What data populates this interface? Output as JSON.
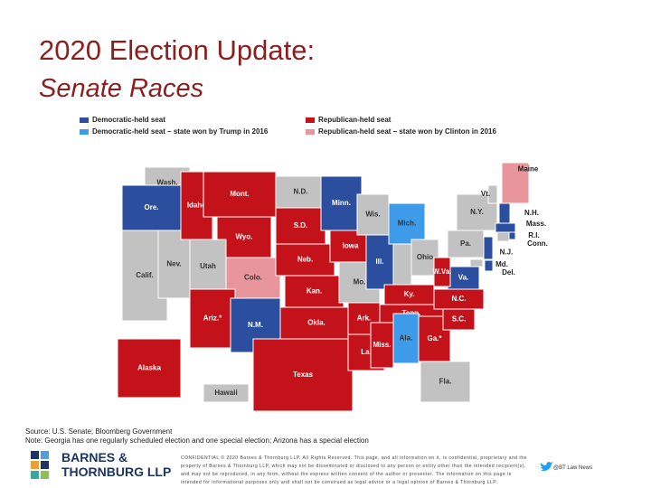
{
  "header": {
    "title": "2020 Election Update:",
    "subtitle": "Senate Races"
  },
  "legend": [
    {
      "label": "Democratic-held seat",
      "status": "d",
      "color": "#2b4f9e"
    },
    {
      "label": "Democratic-held seat – state won by Trump in 2016",
      "status": "dt",
      "color": "#3d9be9"
    },
    {
      "label": "Republican-held seat",
      "status": "r",
      "color": "#c4121a"
    },
    {
      "label": "Republican-held seat – state won by Clinton in 2016",
      "status": "rc",
      "color": "#e8959b"
    }
  ],
  "states": [
    {
      "label": "Wash.",
      "status": "none"
    },
    {
      "label": "Ore.",
      "status": "d"
    },
    {
      "label": "Calif.",
      "status": "none"
    },
    {
      "label": "Nev.",
      "status": "none"
    },
    {
      "label": "Idaho",
      "status": "r"
    },
    {
      "label": "Mont.",
      "status": "r"
    },
    {
      "label": "Wyo.",
      "status": "r"
    },
    {
      "label": "Utah",
      "status": "none"
    },
    {
      "label": "Colo.",
      "status": "rc"
    },
    {
      "label": "Ariz.*",
      "status": "r"
    },
    {
      "label": "N.M.",
      "status": "d"
    },
    {
      "label": "N.D.",
      "status": "none"
    },
    {
      "label": "S.D.",
      "status": "r"
    },
    {
      "label": "Neb.",
      "status": "r"
    },
    {
      "label": "Kan.",
      "status": "r"
    },
    {
      "label": "Okla.",
      "status": "r"
    },
    {
      "label": "Texas",
      "status": "r"
    },
    {
      "label": "Minn.",
      "status": "d"
    },
    {
      "label": "Iowa",
      "status": "r"
    },
    {
      "label": "Mo.",
      "status": "none"
    },
    {
      "label": "Ark.",
      "status": "r"
    },
    {
      "label": "La.",
      "status": "r"
    },
    {
      "label": "Wis.",
      "status": "none"
    },
    {
      "label": "Ill.",
      "status": "d"
    },
    {
      "label": "Mich.",
      "status": "dt"
    },
    {
      "label": "Ohio",
      "status": "none"
    },
    {
      "label": "Ky.",
      "status": "r"
    },
    {
      "label": "Tenn.",
      "status": "r"
    },
    {
      "label": "Miss.",
      "status": "r"
    },
    {
      "label": "Ala.",
      "status": "dt"
    },
    {
      "label": "Ga.*",
      "status": "r"
    },
    {
      "label": "Fla.",
      "status": "none"
    },
    {
      "label": "S.C.",
      "status": "r"
    },
    {
      "label": "N.C.",
      "status": "r"
    },
    {
      "label": "Va.",
      "status": "d"
    },
    {
      "label": "W.Va.",
      "status": "r"
    },
    {
      "label": "Pa.",
      "status": "none"
    },
    {
      "label": "N.Y.",
      "status": "none"
    },
    {
      "label": "Vt.",
      "status": "none"
    },
    {
      "label": "Maine",
      "status": "rc"
    },
    {
      "label": "N.H.",
      "status": "d"
    },
    {
      "label": "Mass.",
      "status": "d"
    },
    {
      "label": "R.I.",
      "status": "d"
    },
    {
      "label": "Conn.",
      "status": "none"
    },
    {
      "label": "N.J.",
      "status": "d"
    },
    {
      "label": "Md.",
      "status": "none"
    },
    {
      "label": "Del.",
      "status": "d"
    },
    {
      "label": "Alaska",
      "status": "r"
    },
    {
      "label": "Hawaii",
      "status": "none"
    }
  ],
  "footer": {
    "source": "Source: U.S. Senate; Bloomberg Government",
    "note": "Note: Georgia has one regularly scheduled election and one special election; Arizona has a special election",
    "logo": "BARNES & THORNBURG LLP",
    "confidential": "CONFIDENTIAL © 2020 Barnes & Thornburg LLP. All Rights Reserved. This page, and all information on it, is confidential, proprietary and the property of Barnes & Thornburg LLP, which may not be disseminated or disclosed to any person or entity other than the intended recipient(s), and may not be reproduced, in any form, without the express written consent of the author or presenter. The information on this page is intended for informational purposes only and shall not be construed as legal advice or a legal opinion of Barnes & Thornburg LLP.",
    "twitter": "@BT Law News"
  }
}
